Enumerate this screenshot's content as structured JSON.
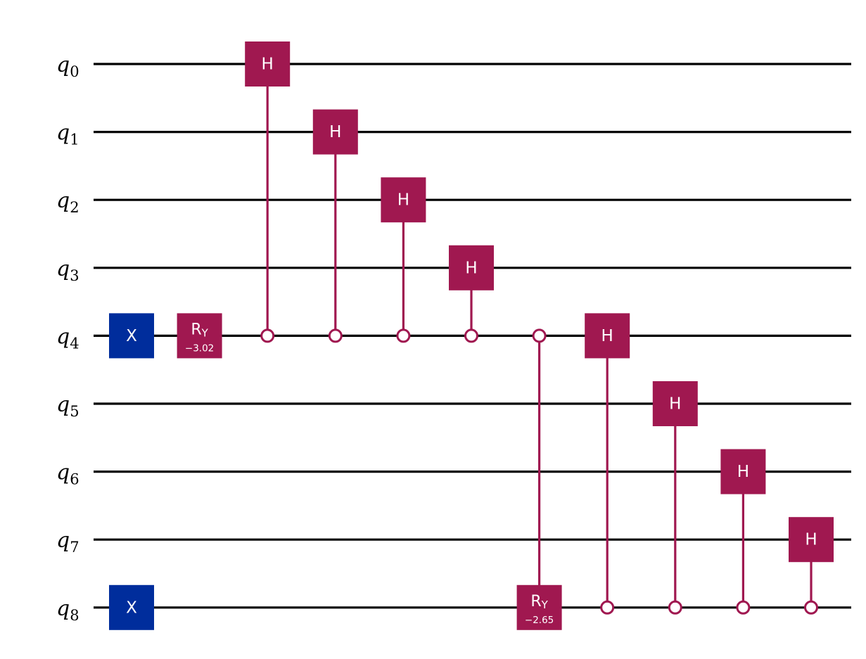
{
  "colors": {
    "wire": "#000000",
    "controlled_gate": "#A01850",
    "x_gate": "#002D9C",
    "gate_text": "#ffffff",
    "background": "#ffffff"
  },
  "qubits": [
    {
      "base": "q",
      "index": "0"
    },
    {
      "base": "q",
      "index": "1"
    },
    {
      "base": "q",
      "index": "2"
    },
    {
      "base": "q",
      "index": "3"
    },
    {
      "base": "q",
      "index": "4"
    },
    {
      "base": "q",
      "index": "5"
    },
    {
      "base": "q",
      "index": "6"
    },
    {
      "base": "q",
      "index": "7"
    },
    {
      "base": "q",
      "index": "8"
    }
  ],
  "gates": [
    {
      "type": "x",
      "label": "X",
      "qubit": 4,
      "column": 0
    },
    {
      "type": "x",
      "label": "X",
      "qubit": 8,
      "column": 0
    },
    {
      "type": "ry",
      "label": "R",
      "sublabel": "Y",
      "param": "−3.02",
      "qubit": 4,
      "column": 1
    },
    {
      "type": "ch",
      "label": "H",
      "control": 4,
      "target": 0,
      "column": 2,
      "control_state": "open"
    },
    {
      "type": "ch",
      "label": "H",
      "control": 4,
      "target": 1,
      "column": 3,
      "control_state": "open"
    },
    {
      "type": "ch",
      "label": "H",
      "control": 4,
      "target": 2,
      "column": 4,
      "control_state": "open"
    },
    {
      "type": "ch",
      "label": "H",
      "control": 4,
      "target": 3,
      "column": 5,
      "control_state": "open"
    },
    {
      "type": "cry",
      "label": "R",
      "sublabel": "Y",
      "param": "−2.65",
      "control": 4,
      "target": 8,
      "column": 6,
      "control_state": "open"
    },
    {
      "type": "ch",
      "label": "H",
      "control": 8,
      "target": 4,
      "column": 7,
      "control_state": "open"
    },
    {
      "type": "ch",
      "label": "H",
      "control": 8,
      "target": 5,
      "column": 8,
      "control_state": "open"
    },
    {
      "type": "ch",
      "label": "H",
      "control": 8,
      "target": 6,
      "column": 9,
      "control_state": "open"
    },
    {
      "type": "ch",
      "label": "H",
      "control": 8,
      "target": 7,
      "column": 10,
      "control_state": "open"
    }
  ]
}
